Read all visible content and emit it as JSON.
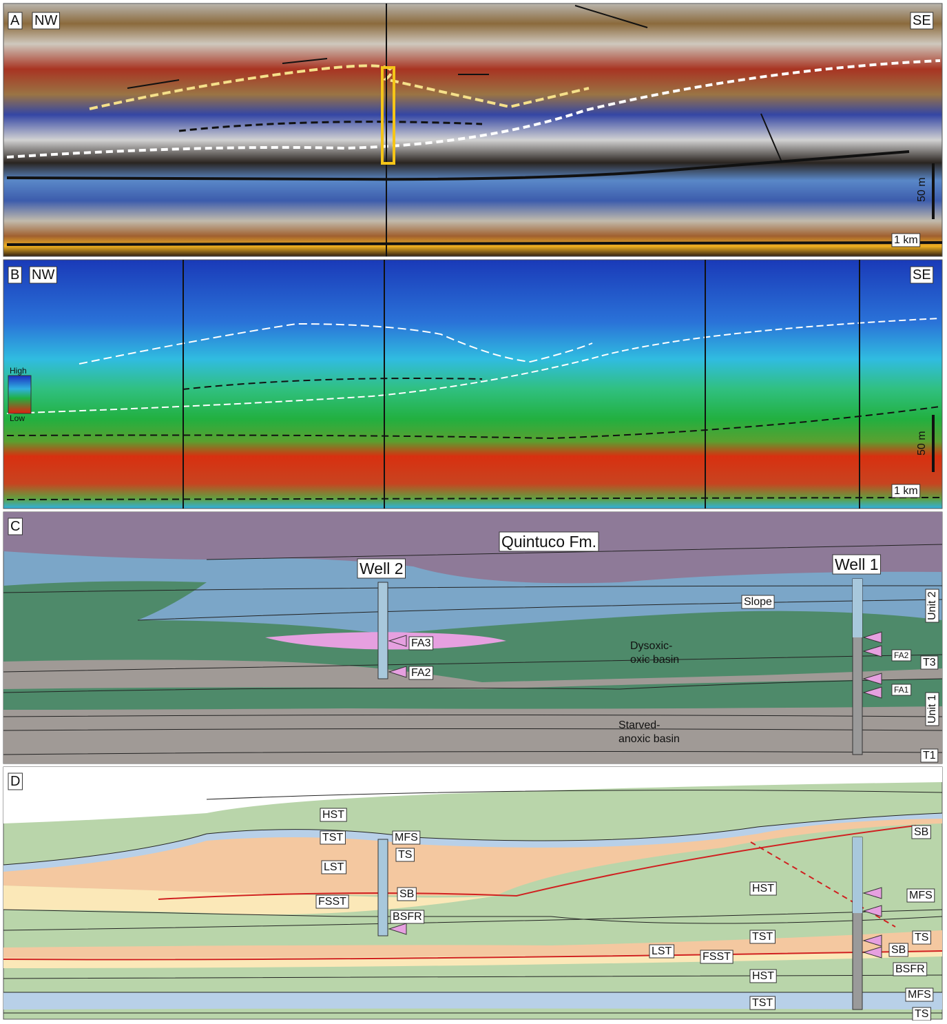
{
  "panel_a": {
    "letter": "A",
    "left": "NW",
    "right": "SE",
    "vertical_scale": "50 m",
    "horizontal_scale": "1 km"
  },
  "panel_b": {
    "letter": "B",
    "left": "NW",
    "right": "SE",
    "legend_high": "High",
    "legend_low": "Low",
    "vertical_scale": "50 m",
    "horizontal_scale": "1 km"
  },
  "panel_c": {
    "letter": "C",
    "formation": "Quintuco Fm.",
    "wells": [
      "Well 2",
      "Well 1"
    ],
    "zones": [
      [
        "Slope"
      ],
      [
        "Dysoxic-",
        "oxic basin"
      ],
      [
        "Starved-",
        "anoxic basin"
      ]
    ],
    "well2_facies": [
      "FA3",
      "FA2"
    ],
    "well1_facies": [
      "FA2",
      "FA1"
    ],
    "units": [
      "Unit 2",
      "Unit 1"
    ],
    "surfaces": [
      "T3",
      "T1"
    ]
  },
  "panel_d": {
    "letter": "D",
    "labels": [
      "HST",
      "TST",
      "MFS",
      "TS",
      "LST",
      "SB",
      "FSST",
      "BSFR",
      "HST",
      "SB",
      "MFS",
      "TS",
      "SB",
      "BSFR",
      "TST",
      "LST",
      "FSST",
      "HST",
      "MFS",
      "TST",
      "TS"
    ]
  }
}
